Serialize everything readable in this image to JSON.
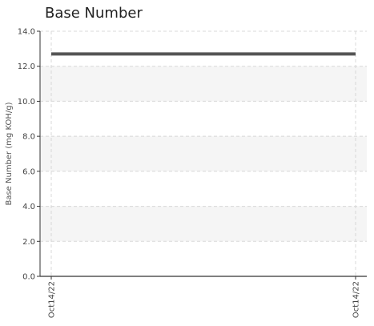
{
  "chart_data": {
    "type": "line",
    "title": "Base Number",
    "xlabel": "",
    "ylabel": "Base Number (mg KOH/g)",
    "x": [
      "Oct14/22",
      "Oct14/22"
    ],
    "series": [
      {
        "values": [
          12.7,
          12.7
        ]
      }
    ],
    "ylim": [
      0,
      14
    ],
    "yticks": [
      "0.0",
      "2.0",
      "4.0",
      "6.0",
      "8.0",
      "10.0",
      "12.0",
      "14.0"
    ],
    "xticks": [
      "Oct14/22",
      "Oct14/22"
    ],
    "grid": true,
    "line_color": "#555555",
    "band_color": "#f5f5f5"
  }
}
